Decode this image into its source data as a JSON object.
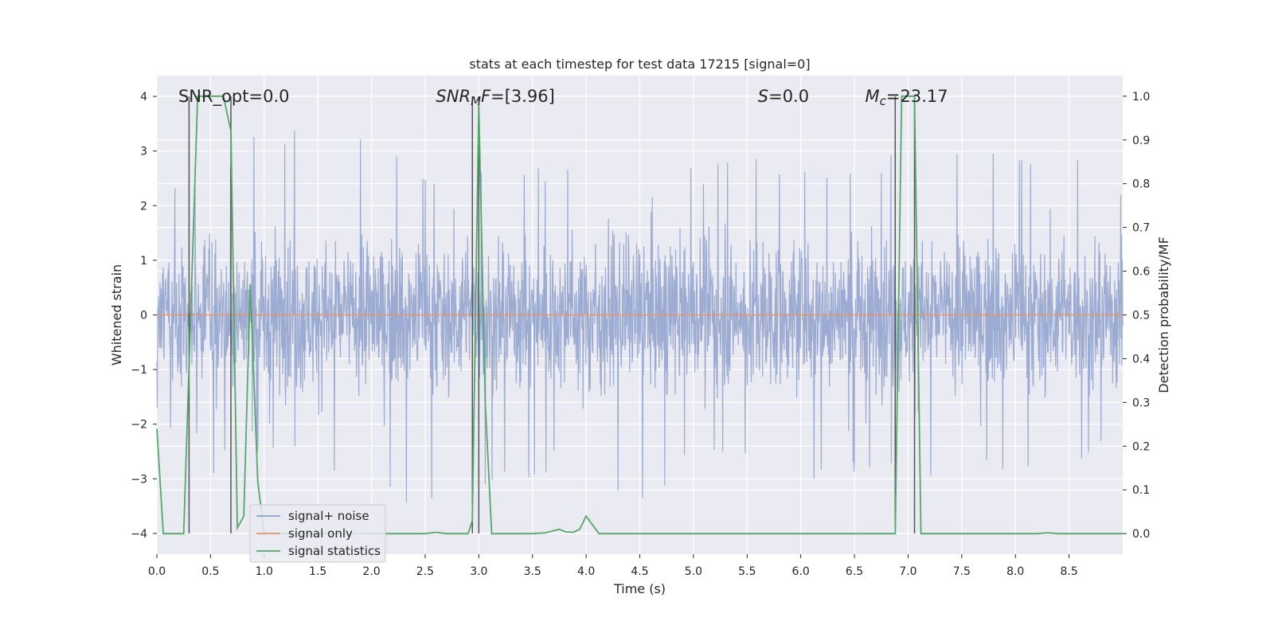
{
  "chart_data": {
    "type": "line",
    "title": "stats at each timestep for test data 17215 [signal=0]",
    "xlabel": "Time (s)",
    "ylabel": "Whitened strain",
    "y2label": "Detection probability/MF",
    "xlim": [
      0,
      9.0
    ],
    "ylim": [
      -4.38,
      4.38
    ],
    "y2lim": [
      -0.047,
      1.047
    ],
    "xticks": [
      0.0,
      0.5,
      1.0,
      1.5,
      2.0,
      2.5,
      3.0,
      3.5,
      4.0,
      4.5,
      5.0,
      5.5,
      6.0,
      6.5,
      7.0,
      7.5,
      8.0,
      8.5
    ],
    "yticks": [
      -4,
      -3,
      -2,
      -1,
      0,
      1,
      2,
      3,
      4
    ],
    "y2ticks": [
      0.0,
      0.1,
      0.2,
      0.3,
      0.4,
      0.5,
      0.6,
      0.7,
      0.8,
      0.9,
      1.0
    ],
    "grid": true,
    "legend_position": "lower-left",
    "series": [
      {
        "name": "signal+ noise",
        "color": "#8da0cb",
        "axis": "left",
        "description": "noise-like whitened strain, approx. range -3.8 to 3.9, typical envelope +/-2.5",
        "envelope_x": [
          0.0,
          0.5,
          1.0,
          1.5,
          2.0,
          2.5,
          3.0,
          3.5,
          4.0,
          4.5,
          5.0,
          5.5,
          6.0,
          6.5,
          7.0,
          7.5,
          8.0,
          8.5,
          9.0
        ],
        "envelope_max": [
          2.4,
          2.6,
          3.9,
          3.2,
          3.3,
          2.8,
          2.9,
          2.7,
          2.9,
          2.9,
          2.8,
          2.9,
          2.8,
          2.9,
          3.1,
          3.0,
          3.2,
          3.3,
          2.3
        ],
        "envelope_min": [
          -2.0,
          -3.0,
          -2.6,
          -2.7,
          -3.6,
          -3.5,
          -3.6,
          -3.0,
          -2.8,
          -3.8,
          -2.7,
          -2.6,
          -3.5,
          -3.0,
          -3.0,
          -3.2,
          -2.8,
          -3.2,
          -2.3
        ]
      },
      {
        "name": "signal only",
        "color": "#e5966e",
        "axis": "left",
        "x": [
          0.0,
          9.0
        ],
        "y": [
          0.0,
          0.0
        ]
      },
      {
        "name": "signal statistics",
        "color": "#55a868",
        "axis": "right",
        "x": [
          0.0,
          0.06,
          0.25,
          0.38,
          0.5,
          0.62,
          0.69,
          0.75,
          0.81,
          0.87,
          0.94,
          1.0,
          1.12,
          2.5,
          2.6,
          2.7,
          2.9,
          2.94,
          3.0,
          3.06,
          3.12,
          3.5,
          3.62,
          3.75,
          3.81,
          3.88,
          3.94,
          4.0,
          4.06,
          4.12,
          4.25,
          6.88,
          6.94,
          7.0,
          7.06,
          7.12,
          8.2,
          8.3,
          8.4,
          9.0
        ],
        "y": [
          0.24,
          0.0,
          0.0,
          1.0,
          1.0,
          1.0,
          0.92,
          0.013,
          0.04,
          0.57,
          0.12,
          0.0,
          0.0,
          0.0,
          0.003,
          0.0,
          0.0,
          0.03,
          0.98,
          0.3,
          0.0,
          0.0,
          0.002,
          0.01,
          0.004,
          0.003,
          0.01,
          0.04,
          0.02,
          0.0,
          0.0,
          0.0,
          1.0,
          1.0,
          1.0,
          0.0,
          0.0,
          0.002,
          0.0,
          0.0
        ]
      }
    ],
    "vertical_markers": [
      {
        "x": 0.3,
        "y_bottom": -4.0,
        "y_top": 4.0
      },
      {
        "x": 0.69,
        "y_bottom": -4.0,
        "y_top": 4.0
      },
      {
        "x": 2.94,
        "y_bottom": -4.0,
        "y_top": 4.0
      },
      {
        "x": 3.0,
        "y_bottom": -4.0,
        "y_top": 4.0
      },
      {
        "x": 6.88,
        "y_bottom": -4.0,
        "y_top": 4.0
      },
      {
        "x": 7.06,
        "y_bottom": -4.0,
        "y_top": 4.0
      }
    ],
    "annotations": [
      {
        "id": "snr-opt",
        "x": 0.2,
        "y": 4.0,
        "parts": [
          {
            "text": "SNR_opt=0.0"
          }
        ]
      },
      {
        "id": "snr-mf",
        "x": 2.6,
        "y": 4.0,
        "parts": [
          {
            "text": "SNR",
            "italic": true
          },
          {
            "text": "M",
            "italic": true,
            "sub": true
          },
          {
            "text": "F",
            "italic": true
          },
          {
            "text": "=[3.96]"
          }
        ]
      },
      {
        "id": "s-stat",
        "x": 5.6,
        "y": 4.0,
        "parts": [
          {
            "text": "S",
            "italic": true
          },
          {
            "text": "=0.0"
          }
        ]
      },
      {
        "id": "mc",
        "x": 6.6,
        "y": 4.0,
        "parts": [
          {
            "text": "M",
            "italic": true
          },
          {
            "text": "c",
            "italic": true,
            "sub": true
          },
          {
            "text": "=23.17"
          }
        ]
      }
    ]
  }
}
